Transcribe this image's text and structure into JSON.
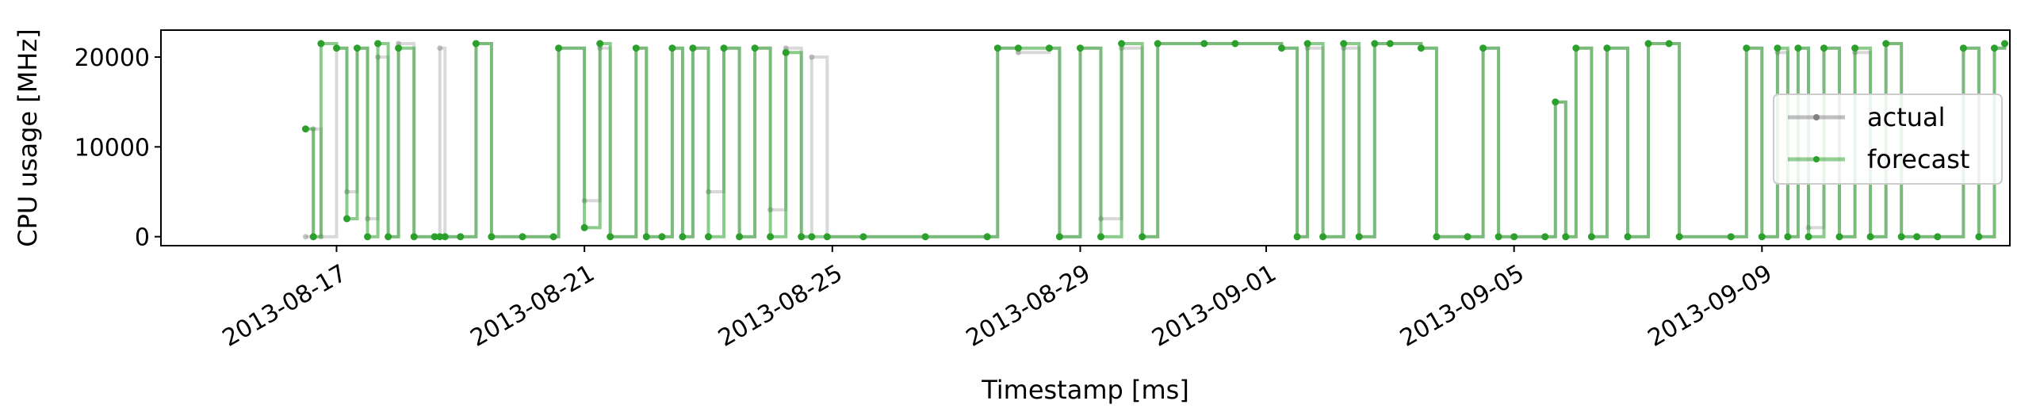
{
  "chart_data": {
    "type": "line",
    "title": "",
    "xlabel": "Timestamp [ms]",
    "ylabel": "CPU usage [MHz]",
    "xlim": [
      "2013-08-14T04:00",
      "2013-09-13T00:00"
    ],
    "ylim": [
      -1000,
      23000
    ],
    "x_ticks": [
      "2013-08-17",
      "2013-08-21",
      "2013-08-25",
      "2013-08-29",
      "2013-09-01",
      "2013-09-05",
      "2013-09-09"
    ],
    "y_ticks": [
      0,
      10000,
      20000
    ],
    "grid": false,
    "legend_position": "center-right",
    "series": [
      {
        "name": "actual",
        "color": "#808080",
        "points": [
          [
            "2013-08-16T12:00",
            0
          ],
          [
            "2013-08-16T15:00",
            12000
          ],
          [
            "2013-08-16T18:00",
            0
          ],
          [
            "2013-08-17T00:00",
            21000
          ],
          [
            "2013-08-17T04:00",
            5000
          ],
          [
            "2013-08-17T08:00",
            21000
          ],
          [
            "2013-08-17T12:00",
            2000
          ],
          [
            "2013-08-17T16:00",
            20000
          ],
          [
            "2013-08-17T20:00",
            0
          ],
          [
            "2013-08-18T00:00",
            21500
          ],
          [
            "2013-08-18T06:00",
            0
          ],
          [
            "2013-08-18T14:00",
            0
          ],
          [
            "2013-08-18T16:00",
            21000
          ],
          [
            "2013-08-18T18:00",
            0
          ],
          [
            "2013-08-19T00:00",
            0
          ],
          [
            "2013-08-19T06:00",
            21500
          ],
          [
            "2013-08-19T12:00",
            0
          ],
          [
            "2013-08-20T00:00",
            0
          ],
          [
            "2013-08-20T12:00",
            0
          ],
          [
            "2013-08-20T14:00",
            21000
          ],
          [
            "2013-08-21T00:00",
            4000
          ],
          [
            "2013-08-21T06:00",
            21000
          ],
          [
            "2013-08-21T10:00",
            0
          ],
          [
            "2013-08-21T20:00",
            21000
          ],
          [
            "2013-08-22T00:00",
            0
          ],
          [
            "2013-08-22T06:00",
            0
          ],
          [
            "2013-08-22T10:00",
            21000
          ],
          [
            "2013-08-22T14:00",
            0
          ],
          [
            "2013-08-22T18:00",
            21000
          ],
          [
            "2013-08-23T00:00",
            5000
          ],
          [
            "2013-08-23T06:00",
            21000
          ],
          [
            "2013-08-23T12:00",
            0
          ],
          [
            "2013-08-23T18:00",
            21000
          ],
          [
            "2013-08-24T00:00",
            3000
          ],
          [
            "2013-08-24T06:00",
            21000
          ],
          [
            "2013-08-24T12:00",
            0
          ],
          [
            "2013-08-24T16:00",
            20000
          ],
          [
            "2013-08-24T22:00",
            0
          ],
          [
            "2013-08-25T12:00",
            0
          ],
          [
            "2013-08-26T12:00",
            0
          ],
          [
            "2013-08-27T12:00",
            0
          ],
          [
            "2013-08-27T16:00",
            21000
          ],
          [
            "2013-08-28T00:00",
            20500
          ],
          [
            "2013-08-28T12:00",
            21000
          ],
          [
            "2013-08-28T16:00",
            0
          ],
          [
            "2013-08-29T00:00",
            21000
          ],
          [
            "2013-08-29T08:00",
            2000
          ],
          [
            "2013-08-29T16:00",
            21000
          ],
          [
            "2013-08-30T00:00",
            0
          ],
          [
            "2013-08-30T06:00",
            21500
          ],
          [
            "2013-08-31T00:00",
            21500
          ],
          [
            "2013-08-31T12:00",
            21500
          ],
          [
            "2013-09-01T06:00",
            21000
          ],
          [
            "2013-09-01T12:00",
            0
          ],
          [
            "2013-09-01T16:00",
            21000
          ],
          [
            "2013-09-01T22:00",
            0
          ],
          [
            "2013-09-02T06:00",
            21000
          ],
          [
            "2013-09-02T12:00",
            0
          ],
          [
            "2013-09-02T18:00",
            21500
          ],
          [
            "2013-09-03T00:00",
            21500
          ],
          [
            "2013-09-03T12:00",
            21000
          ],
          [
            "2013-09-03T18:00",
            0
          ],
          [
            "2013-09-04T06:00",
            0
          ],
          [
            "2013-09-04T12:00",
            21000
          ],
          [
            "2013-09-04T18:00",
            0
          ],
          [
            "2013-09-05T00:00",
            0
          ],
          [
            "2013-09-05T12:00",
            0
          ],
          [
            "2013-09-05T16:00",
            15000
          ],
          [
            "2013-09-05T20:00",
            0
          ],
          [
            "2013-09-06T00:00",
            21000
          ],
          [
            "2013-09-06T06:00",
            0
          ],
          [
            "2013-09-06T12:00",
            21000
          ],
          [
            "2013-09-06T20:00",
            0
          ],
          [
            "2013-09-07T04:00",
            21500
          ],
          [
            "2013-09-07T12:00",
            21500
          ],
          [
            "2013-09-07T16:00",
            0
          ],
          [
            "2013-09-08T12:00",
            0
          ],
          [
            "2013-09-08T18:00",
            21000
          ],
          [
            "2013-09-09T00:00",
            0
          ],
          [
            "2013-09-09T06:00",
            20500
          ],
          [
            "2013-09-09T10:00",
            0
          ],
          [
            "2013-09-09T14:00",
            21000
          ],
          [
            "2013-09-09T18:00",
            1000
          ],
          [
            "2013-09-10T00:00",
            21000
          ],
          [
            "2013-09-10T06:00",
            0
          ],
          [
            "2013-09-10T12:00",
            20500
          ],
          [
            "2013-09-10T18:00",
            0
          ],
          [
            "2013-09-11T00:00",
            21500
          ],
          [
            "2013-09-11T06:00",
            0
          ],
          [
            "2013-09-11T12:00",
            0
          ],
          [
            "2013-09-11T20:00",
            0
          ],
          [
            "2013-09-12T06:00",
            21000
          ],
          [
            "2013-09-12T12:00",
            0
          ],
          [
            "2013-09-12T18:00",
            21000
          ],
          [
            "2013-09-12T22:00",
            21500
          ]
        ]
      },
      {
        "name": "forecast",
        "color": "#2ca02c",
        "points": [
          [
            "2013-08-16T12:00",
            12000
          ],
          [
            "2013-08-16T15:00",
            0
          ],
          [
            "2013-08-16T18:00",
            21500
          ],
          [
            "2013-08-17T00:00",
            21000
          ],
          [
            "2013-08-17T04:00",
            2000
          ],
          [
            "2013-08-17T08:00",
            21000
          ],
          [
            "2013-08-17T12:00",
            0
          ],
          [
            "2013-08-17T16:00",
            21500
          ],
          [
            "2013-08-17T20:00",
            0
          ],
          [
            "2013-08-18T00:00",
            21000
          ],
          [
            "2013-08-18T06:00",
            0
          ],
          [
            "2013-08-18T14:00",
            0
          ],
          [
            "2013-08-18T16:00",
            0
          ],
          [
            "2013-08-18T18:00",
            0
          ],
          [
            "2013-08-19T00:00",
            0
          ],
          [
            "2013-08-19T06:00",
            21500
          ],
          [
            "2013-08-19T12:00",
            0
          ],
          [
            "2013-08-20T00:00",
            0
          ],
          [
            "2013-08-20T12:00",
            0
          ],
          [
            "2013-08-20T14:00",
            21000
          ],
          [
            "2013-08-21T00:00",
            1000
          ],
          [
            "2013-08-21T06:00",
            21500
          ],
          [
            "2013-08-21T10:00",
            0
          ],
          [
            "2013-08-21T20:00",
            21000
          ],
          [
            "2013-08-22T00:00",
            0
          ],
          [
            "2013-08-22T06:00",
            0
          ],
          [
            "2013-08-22T10:00",
            21000
          ],
          [
            "2013-08-22T14:00",
            0
          ],
          [
            "2013-08-22T18:00",
            21000
          ],
          [
            "2013-08-23T00:00",
            0
          ],
          [
            "2013-08-23T06:00",
            21000
          ],
          [
            "2013-08-23T12:00",
            0
          ],
          [
            "2013-08-23T18:00",
            21000
          ],
          [
            "2013-08-24T00:00",
            0
          ],
          [
            "2013-08-24T06:00",
            20500
          ],
          [
            "2013-08-24T12:00",
            0
          ],
          [
            "2013-08-24T16:00",
            0
          ],
          [
            "2013-08-24T22:00",
            0
          ],
          [
            "2013-08-25T12:00",
            0
          ],
          [
            "2013-08-26T12:00",
            0
          ],
          [
            "2013-08-27T12:00",
            0
          ],
          [
            "2013-08-27T16:00",
            21000
          ],
          [
            "2013-08-28T00:00",
            21000
          ],
          [
            "2013-08-28T12:00",
            21000
          ],
          [
            "2013-08-28T16:00",
            0
          ],
          [
            "2013-08-29T00:00",
            21000
          ],
          [
            "2013-08-29T08:00",
            0
          ],
          [
            "2013-08-29T16:00",
            21500
          ],
          [
            "2013-08-30T00:00",
            0
          ],
          [
            "2013-08-30T06:00",
            21500
          ],
          [
            "2013-08-31T00:00",
            21500
          ],
          [
            "2013-08-31T12:00",
            21500
          ],
          [
            "2013-09-01T06:00",
            21000
          ],
          [
            "2013-09-01T12:00",
            0
          ],
          [
            "2013-09-01T16:00",
            21500
          ],
          [
            "2013-09-01T22:00",
            0
          ],
          [
            "2013-09-02T06:00",
            21500
          ],
          [
            "2013-09-02T12:00",
            0
          ],
          [
            "2013-09-02T18:00",
            21500
          ],
          [
            "2013-09-03T00:00",
            21500
          ],
          [
            "2013-09-03T12:00",
            21000
          ],
          [
            "2013-09-03T18:00",
            0
          ],
          [
            "2013-09-04T06:00",
            0
          ],
          [
            "2013-09-04T12:00",
            21000
          ],
          [
            "2013-09-04T18:00",
            0
          ],
          [
            "2013-09-05T00:00",
            0
          ],
          [
            "2013-09-05T12:00",
            0
          ],
          [
            "2013-09-05T16:00",
            15000
          ],
          [
            "2013-09-05T20:00",
            0
          ],
          [
            "2013-09-06T00:00",
            21000
          ],
          [
            "2013-09-06T06:00",
            0
          ],
          [
            "2013-09-06T12:00",
            21000
          ],
          [
            "2013-09-06T20:00",
            0
          ],
          [
            "2013-09-07T04:00",
            21500
          ],
          [
            "2013-09-07T12:00",
            21500
          ],
          [
            "2013-09-07T16:00",
            0
          ],
          [
            "2013-09-08T12:00",
            0
          ],
          [
            "2013-09-08T18:00",
            21000
          ],
          [
            "2013-09-09T00:00",
            0
          ],
          [
            "2013-09-09T06:00",
            21000
          ],
          [
            "2013-09-09T10:00",
            0
          ],
          [
            "2013-09-09T14:00",
            21000
          ],
          [
            "2013-09-09T18:00",
            0
          ],
          [
            "2013-09-10T00:00",
            21000
          ],
          [
            "2013-09-10T06:00",
            0
          ],
          [
            "2013-09-10T12:00",
            21000
          ],
          [
            "2013-09-10T18:00",
            0
          ],
          [
            "2013-09-11T00:00",
            21500
          ],
          [
            "2013-09-11T06:00",
            0
          ],
          [
            "2013-09-11T12:00",
            0
          ],
          [
            "2013-09-11T20:00",
            0
          ],
          [
            "2013-09-12T06:00",
            21000
          ],
          [
            "2013-09-12T12:00",
            0
          ],
          [
            "2013-09-12T18:00",
            21000
          ],
          [
            "2013-09-12T22:00",
            21500
          ]
        ]
      }
    ]
  }
}
